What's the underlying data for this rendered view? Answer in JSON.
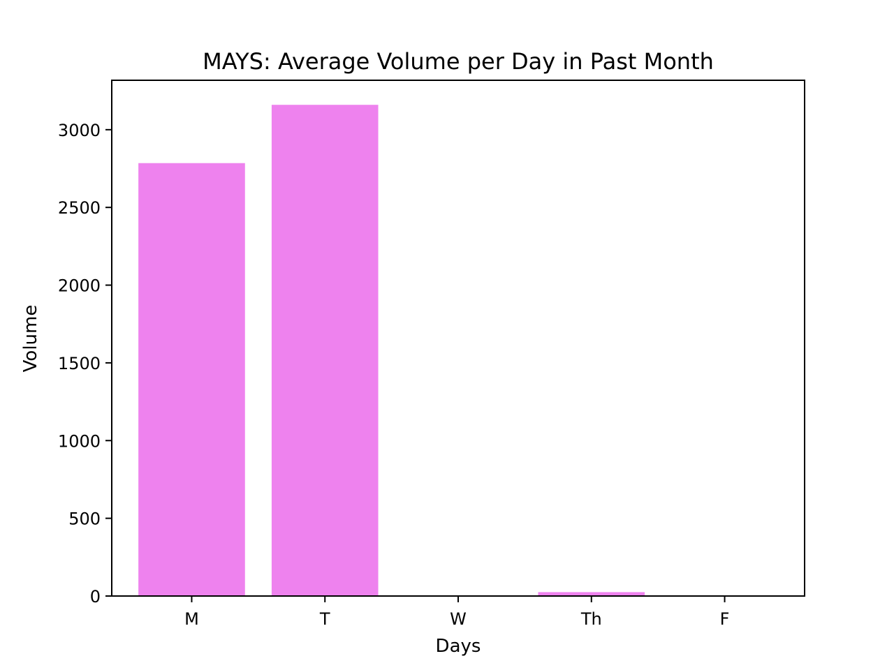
{
  "chart_data": {
    "type": "bar",
    "title": "MAYS: Average Volume per Day in Past Month",
    "xlabel": "Days",
    "ylabel": "Volume",
    "categories": [
      "M",
      "T",
      "W",
      "Th",
      "F"
    ],
    "values": [
      2785,
      3160,
      0,
      25,
      0
    ],
    "ylim": [
      0,
      3318
    ],
    "yticks": [
      0,
      500,
      1000,
      1500,
      2000,
      2500,
      3000
    ],
    "bar_color": "#ee82ee",
    "grid": false,
    "legend": "none"
  }
}
